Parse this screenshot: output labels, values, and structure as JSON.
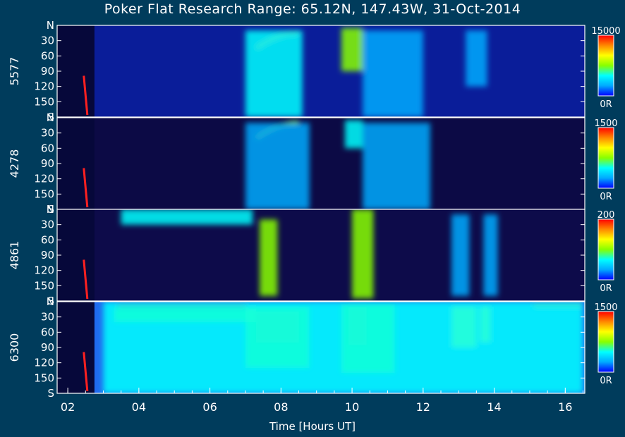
{
  "chart_data": {
    "type": "heatmap",
    "title": "Poker Flat Research Range: 65.12N, 147.43W, 31-Oct-2014",
    "xlabel": "Time [Hours UT]",
    "x_ticks": [
      "02",
      "04",
      "06",
      "08",
      "10",
      "12",
      "14",
      "16"
    ],
    "xlim": [
      1.7,
      16.55
    ],
    "y_ticks": [
      "N",
      "30",
      "60",
      "90",
      "120",
      "150",
      "S"
    ],
    "ylim": [
      0,
      180
    ],
    "colormap": [
      "#0000ff",
      "#00aaff",
      "#00ffff",
      "#88ff00",
      "#ffff00",
      "#ff8800",
      "#ff0000"
    ],
    "panels": [
      {
        "ylabel": "5577",
        "colorbar_max": "15000",
        "colorbar_min": "0R",
        "background": "#0a1d99",
        "features": [
          {
            "kind": "arc",
            "t_start": 7.3,
            "t_end": 8.5,
            "zenith_start": 45,
            "zenith_end": 15,
            "intensity": 0.75
          },
          {
            "kind": "band",
            "t_start": 7.0,
            "t_end": 8.6,
            "zenith_start": 10,
            "zenith_end": 180,
            "intensity": 0.25
          },
          {
            "kind": "band",
            "t_start": 9.7,
            "t_end": 10.3,
            "zenith_start": 5,
            "zenith_end": 90,
            "intensity": 0.45
          },
          {
            "kind": "band",
            "t_start": 10.3,
            "t_end": 12.0,
            "zenith_start": 10,
            "zenith_end": 180,
            "intensity": 0.2
          },
          {
            "kind": "band",
            "t_start": 13.2,
            "t_end": 13.8,
            "zenith_start": 10,
            "zenith_end": 120,
            "intensity": 0.18
          }
        ]
      },
      {
        "ylabel": "4278",
        "colorbar_max": "1500",
        "colorbar_min": "0R",
        "background": "#0c0a45",
        "features": [
          {
            "kind": "arc",
            "t_start": 7.3,
            "t_end": 8.5,
            "zenith_start": 40,
            "zenith_end": 10,
            "intensity": 0.55
          },
          {
            "kind": "band",
            "t_start": 7.0,
            "t_end": 8.8,
            "zenith_start": 10,
            "zenith_end": 180,
            "intensity": 0.15
          },
          {
            "kind": "band",
            "t_start": 9.8,
            "t_end": 10.3,
            "zenith_start": 5,
            "zenith_end": 60,
            "intensity": 0.4
          },
          {
            "kind": "band",
            "t_start": 10.3,
            "t_end": 12.2,
            "zenith_start": 10,
            "zenith_end": 180,
            "intensity": 0.15
          }
        ]
      },
      {
        "ylabel": "4861",
        "colorbar_max": "200",
        "colorbar_min": "0R",
        "background": "#0d0b4a",
        "features": [
          {
            "kind": "band",
            "t_start": 3.5,
            "t_end": 7.2,
            "zenith_start": 0,
            "zenith_end": 30,
            "intensity": 0.3
          },
          {
            "kind": "band",
            "t_start": 7.4,
            "t_end": 7.9,
            "zenith_start": 20,
            "zenith_end": 170,
            "intensity": 0.45
          },
          {
            "kind": "band",
            "t_start": 10.0,
            "t_end": 10.6,
            "zenith_start": 0,
            "zenith_end": 175,
            "intensity": 0.5
          },
          {
            "kind": "band",
            "t_start": 12.8,
            "t_end": 13.3,
            "zenith_start": 10,
            "zenith_end": 170,
            "intensity": 0.2
          },
          {
            "kind": "band",
            "t_start": 13.7,
            "t_end": 14.1,
            "zenith_start": 10,
            "zenith_end": 170,
            "intensity": 0.2
          }
        ]
      },
      {
        "ylabel": "6300",
        "colorbar_max": "1500",
        "colorbar_min": "0R",
        "background": "#1f6aee",
        "features": [
          {
            "kind": "band",
            "t_start": 3.4,
            "t_end": 7.0,
            "zenith_start": 3,
            "zenith_end": 12,
            "intensity": 0.98
          },
          {
            "kind": "band",
            "t_start": 3.3,
            "t_end": 7.3,
            "zenith_start": 12,
            "zenith_end": 40,
            "intensity": 0.55
          },
          {
            "kind": "band",
            "t_start": 7.3,
            "t_end": 8.5,
            "zenith_start": 20,
            "zenith_end": 80,
            "intensity": 0.95
          },
          {
            "kind": "band",
            "t_start": 7.0,
            "t_end": 8.8,
            "zenith_start": 10,
            "zenith_end": 130,
            "intensity": 0.55
          },
          {
            "kind": "band",
            "t_start": 9.9,
            "t_end": 10.4,
            "zenith_start": 10,
            "zenith_end": 85,
            "intensity": 1.0
          },
          {
            "kind": "band",
            "t_start": 9.7,
            "t_end": 11.2,
            "zenith_start": 5,
            "zenith_end": 140,
            "intensity": 0.55
          },
          {
            "kind": "band",
            "t_start": 12.8,
            "t_end": 13.5,
            "zenith_start": 10,
            "zenith_end": 90,
            "intensity": 0.65
          },
          {
            "kind": "band",
            "t_start": 13.6,
            "t_end": 13.9,
            "zenith_start": 10,
            "zenith_end": 80,
            "intensity": 0.6
          },
          {
            "kind": "band",
            "t_start": 15.1,
            "t_end": 16.5,
            "zenith_start": 2,
            "zenith_end": 12,
            "intensity": 0.8
          },
          {
            "kind": "band",
            "t_start": 3.0,
            "t_end": 16.5,
            "zenith_start": 0,
            "zenith_end": 180,
            "intensity": 0.3
          }
        ]
      }
    ]
  }
}
